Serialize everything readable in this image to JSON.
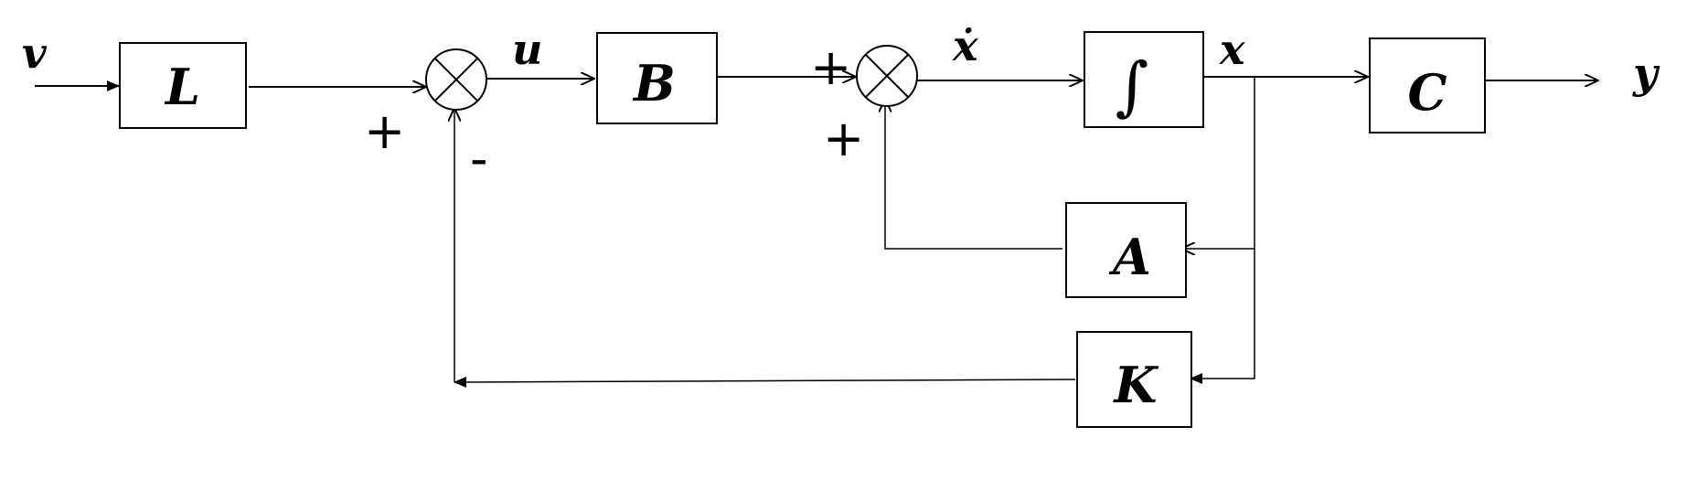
{
  "blocks": {
    "L": "L",
    "B": "B",
    "integrator": "∫",
    "C": "C",
    "A": "A",
    "K": "K"
  },
  "signals": {
    "input": "v",
    "control": "u",
    "state_derivative": "ẋ",
    "state": "x",
    "output": "y"
  },
  "signs": {
    "sum1_reference": "+",
    "sum1_feedback": "-",
    "sum2_input": "+",
    "sum2_feedback": "+"
  }
}
